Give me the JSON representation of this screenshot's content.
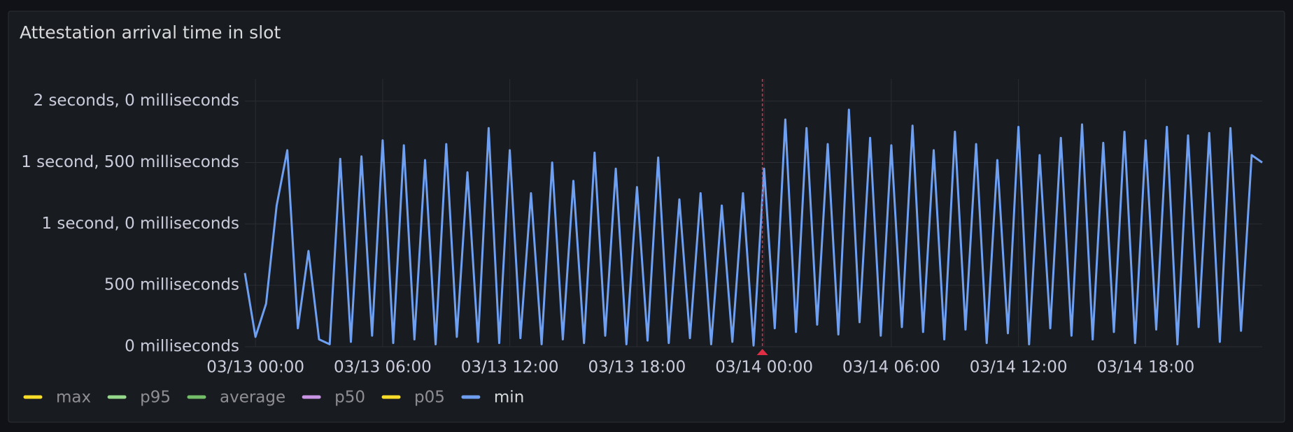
{
  "chart_data": {
    "type": "line",
    "title": "Attestation arrival time in slot",
    "x": [
      "03/12 23:30",
      "03/13 00:00",
      "03/13 00:30",
      "03/13 01:00",
      "03/13 01:30",
      "03/13 02:00",
      "03/13 02:30",
      "03/13 03:00",
      "03/13 03:30",
      "03/13 04:00",
      "03/13 04:30",
      "03/13 05:00",
      "03/13 05:30",
      "03/13 06:00",
      "03/13 06:30",
      "03/13 07:00",
      "03/13 07:30",
      "03/13 08:00",
      "03/13 08:30",
      "03/13 09:00",
      "03/13 09:30",
      "03/13 10:00",
      "03/13 10:30",
      "03/13 11:00",
      "03/13 11:30",
      "03/13 12:00",
      "03/13 12:30",
      "03/13 13:00",
      "03/13 13:30",
      "03/13 14:00",
      "03/13 14:30",
      "03/13 15:00",
      "03/13 15:30",
      "03/13 16:00",
      "03/13 16:30",
      "03/13 17:00",
      "03/13 17:30",
      "03/13 18:00",
      "03/13 18:30",
      "03/13 19:00",
      "03/13 19:30",
      "03/13 20:00",
      "03/13 20:30",
      "03/13 21:00",
      "03/13 21:30",
      "03/13 22:00",
      "03/13 22:30",
      "03/13 23:00",
      "03/13 23:30",
      "03/14 00:00",
      "03/14 00:30",
      "03/14 01:00",
      "03/14 01:30",
      "03/14 02:00",
      "03/14 02:30",
      "03/14 03:00",
      "03/14 03:30",
      "03/14 04:00",
      "03/14 04:30",
      "03/14 05:00",
      "03/14 05:30",
      "03/14 06:00",
      "03/14 06:30",
      "03/14 07:00",
      "03/14 07:30",
      "03/14 08:00",
      "03/14 08:30",
      "03/14 09:00",
      "03/14 09:30",
      "03/14 10:00",
      "03/14 10:30",
      "03/14 11:00",
      "03/14 11:30",
      "03/14 12:00",
      "03/14 12:30",
      "03/14 13:00",
      "03/14 13:30",
      "03/14 14:00",
      "03/14 14:30",
      "03/14 15:00",
      "03/14 15:30",
      "03/14 16:00",
      "03/14 16:30",
      "03/14 17:00",
      "03/14 17:30",
      "03/14 18:00",
      "03/14 18:30",
      "03/14 19:00",
      "03/14 19:30",
      "03/14 20:00",
      "03/14 20:30",
      "03/14 21:00",
      "03/14 21:30",
      "03/14 22:00",
      "03/14 22:30",
      "03/14 23:00",
      "03/14 23:30"
    ],
    "series": [
      {
        "name": "min",
        "color": "#6e9ff0",
        "values": [
          600,
          80,
          350,
          1150,
          1600,
          150,
          780,
          60,
          20,
          1530,
          40,
          1550,
          90,
          1680,
          30,
          1640,
          60,
          1520,
          20,
          1650,
          80,
          1420,
          40,
          1780,
          30,
          1600,
          70,
          1250,
          20,
          1500,
          60,
          1350,
          30,
          1580,
          90,
          1450,
          20,
          1300,
          50,
          1540,
          30,
          1200,
          70,
          1250,
          20,
          1150,
          40,
          1250,
          10,
          1450,
          150,
          1850,
          120,
          1780,
          180,
          1650,
          100,
          1930,
          200,
          1700,
          90,
          1640,
          160,
          1800,
          120,
          1600,
          60,
          1750,
          140,
          1650,
          30,
          1520,
          110,
          1790,
          20,
          1560,
          150,
          1700,
          90,
          1810,
          60,
          1660,
          120,
          1750,
          30,
          1680,
          140,
          1790,
          20,
          1720,
          160,
          1740,
          40,
          1780,
          130,
          1560,
          1500
        ]
      }
    ],
    "hidden_series": [
      {
        "name": "max",
        "color": "#fade2a"
      },
      {
        "name": "p95",
        "color": "#96d98d"
      },
      {
        "name": "average",
        "color": "#73bf69"
      },
      {
        "name": "p50",
        "color": "#ca95e5"
      },
      {
        "name": "p05",
        "color": "#fade2a"
      }
    ],
    "xlim": [
      "03/12 23:30",
      "03/14 23:30"
    ],
    "xticks": [
      "03/13 00:00",
      "03/13 06:00",
      "03/13 12:00",
      "03/13 18:00",
      "03/14 00:00",
      "03/14 06:00",
      "03/14 12:00",
      "03/14 18:00"
    ],
    "ylim": [
      0,
      2180
    ],
    "yticks": [
      {
        "value": 0,
        "label": "0 milliseconds"
      },
      {
        "value": 500,
        "label": "500 milliseconds"
      },
      {
        "value": 1000,
        "label": "1 second, 0 milliseconds"
      },
      {
        "value": 1500,
        "label": "1 second, 500 milliseconds"
      },
      {
        "value": 2000,
        "label": "2 seconds, 0 milliseconds"
      }
    ],
    "grid": true,
    "annotations": [
      {
        "x": "03/13 23:55",
        "color": "#e02f44"
      }
    ]
  }
}
